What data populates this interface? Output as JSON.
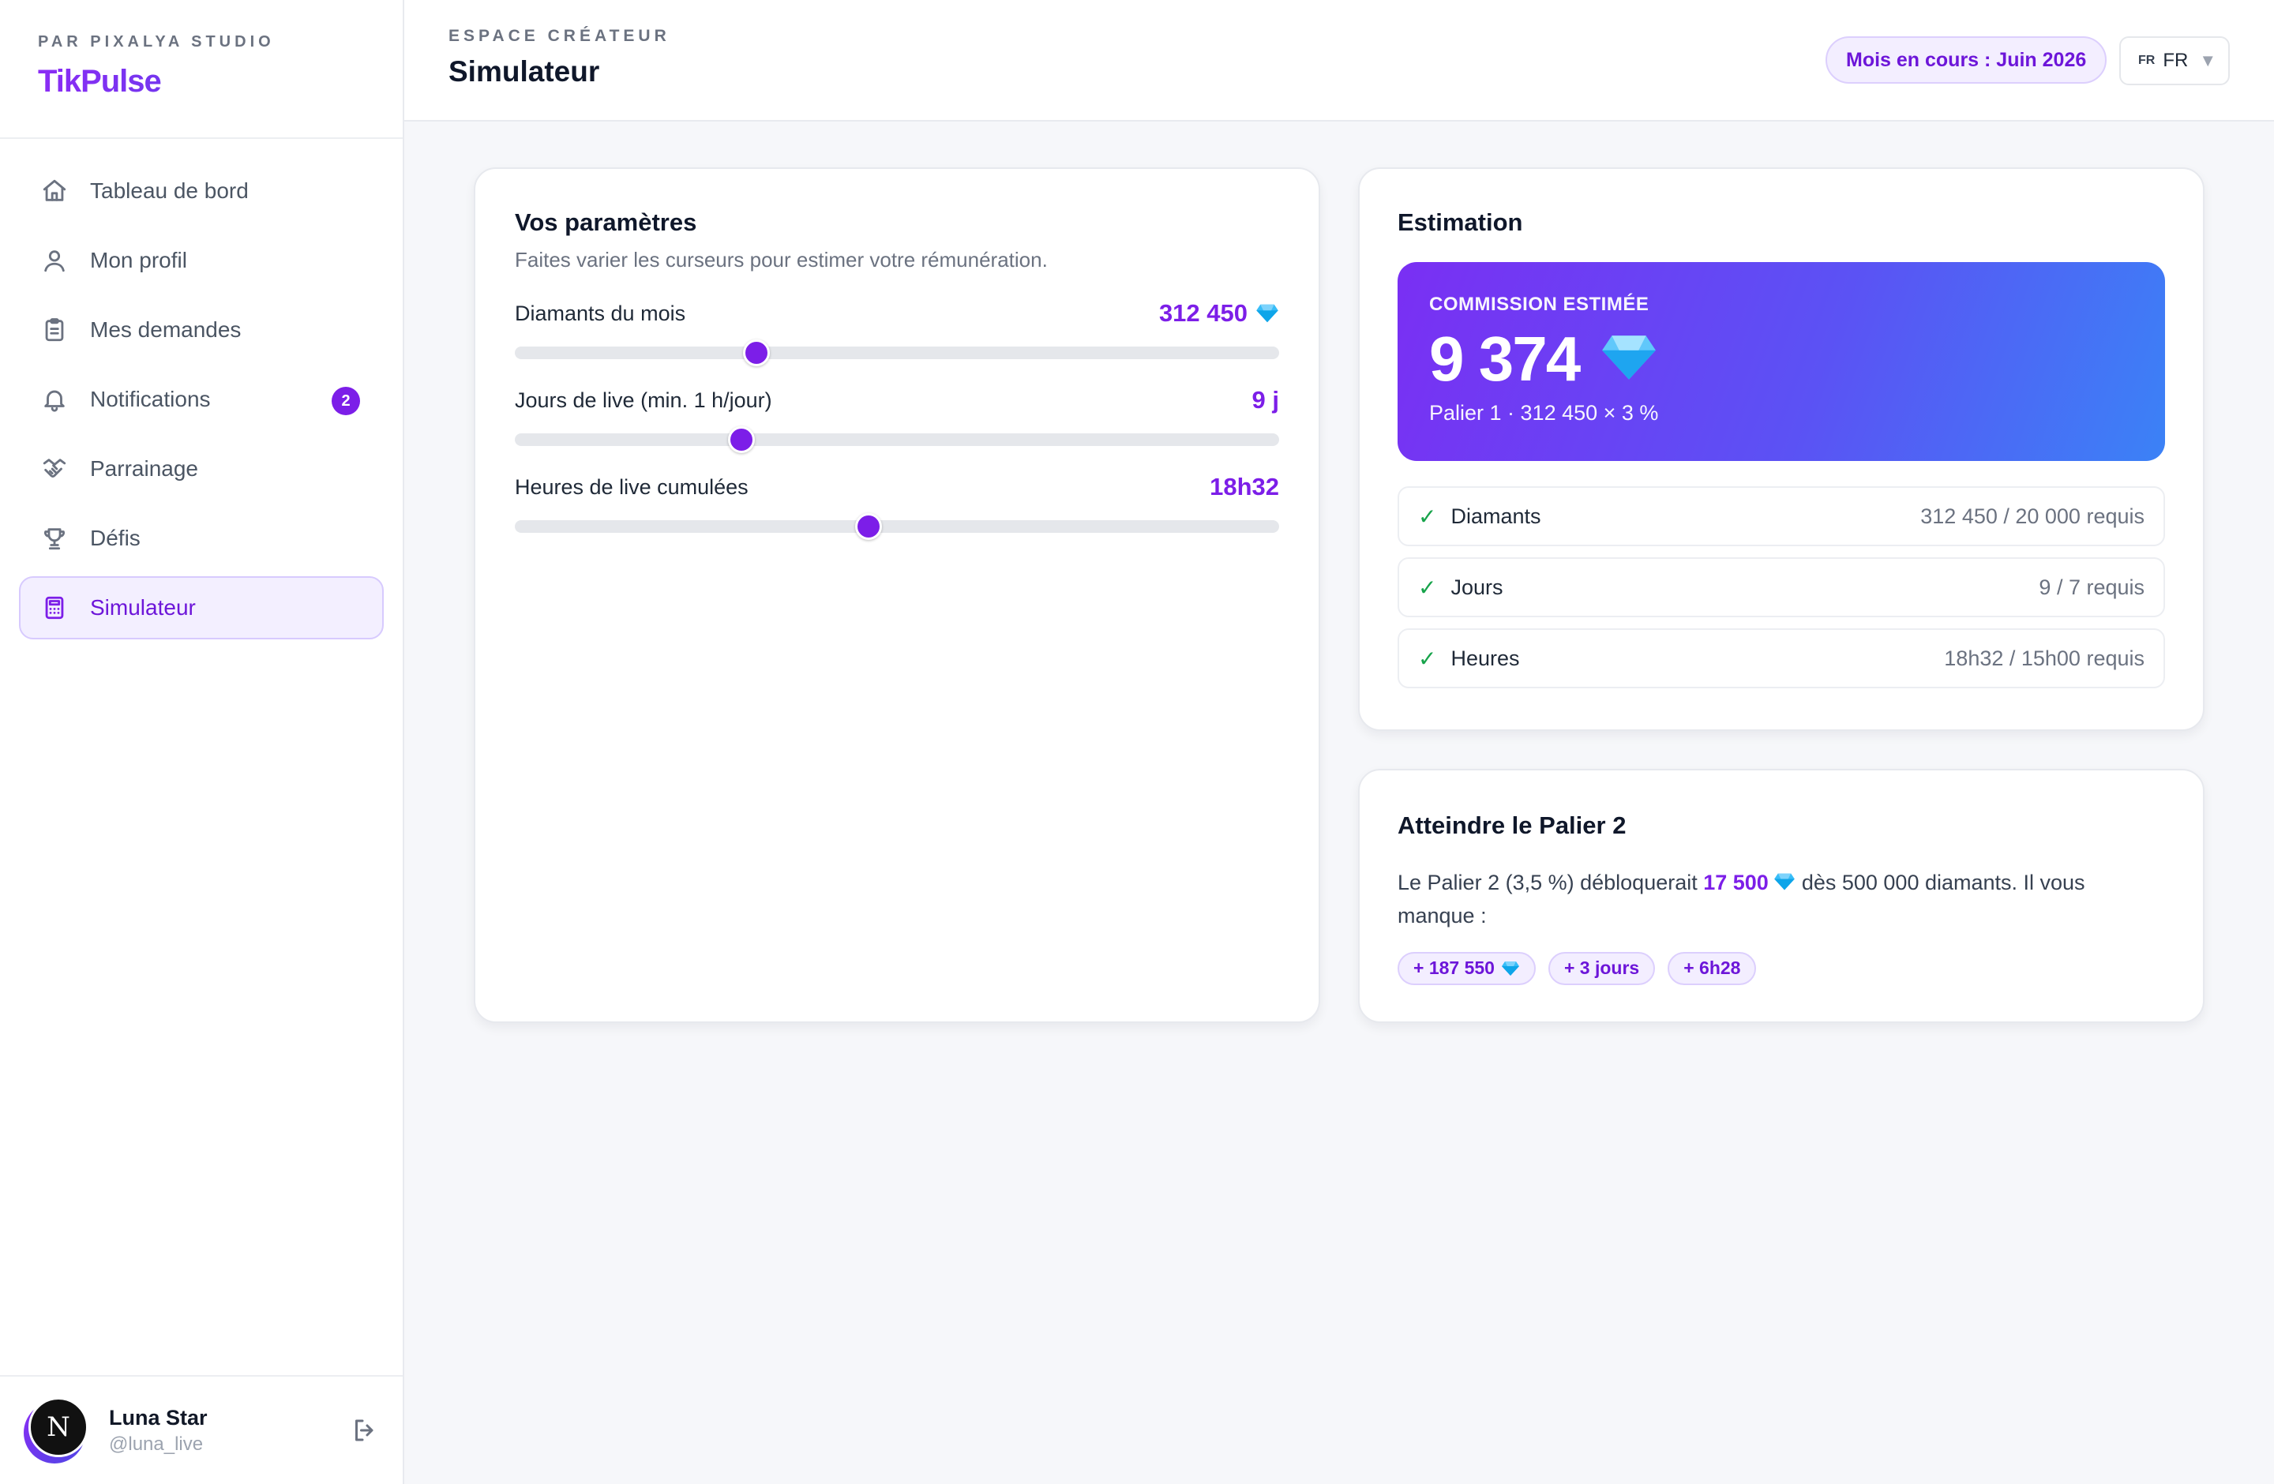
{
  "brand": {
    "kicker": "PAR PIXALYA STUDIO",
    "name": "TikPulse"
  },
  "sidebar": {
    "items": [
      {
        "label": "Tableau de bord",
        "icon": "home-icon"
      },
      {
        "label": "Mon profil",
        "icon": "user-icon"
      },
      {
        "label": "Mes demandes",
        "icon": "clipboard-icon"
      },
      {
        "label": "Notifications",
        "icon": "bell-icon",
        "badge": "2"
      },
      {
        "label": "Parrainage",
        "icon": "handshake-icon"
      },
      {
        "label": "Défis",
        "icon": "trophy-icon"
      },
      {
        "label": "Simulateur",
        "icon": "calculator-icon",
        "active": true
      }
    ]
  },
  "user": {
    "initial": "N",
    "name": "Luna Star",
    "handle": "@luna_live"
  },
  "header": {
    "kicker": "ESPACE CRÉATEUR",
    "title": "Simulateur",
    "month": "Mois en cours : Juin 2026",
    "lang_flag": "FR",
    "lang_value": "FR"
  },
  "params": {
    "title": "Vos paramètres",
    "subtitle": "Faites varier les curseurs pour estimer votre rémunération.",
    "sliders": [
      {
        "label": "Diamants du mois",
        "value": "312 450",
        "fraction": 0.316
      },
      {
        "label": "Jours de live (min. 1 h/jour)",
        "value": "9 j",
        "fraction": 0.296
      },
      {
        "label": "Heures de live cumulées",
        "value": "18h32",
        "fraction": 0.463
      }
    ]
  },
  "estimation": {
    "title": "Estimation",
    "hero_label": "COMMISSION ESTIMÉE",
    "hero_amount": "9 374",
    "hero_detail": "Palier 1 · 312 450 × 3 %",
    "requirements": [
      {
        "check": "✓",
        "label": "Diamants",
        "value": "312 450 / 20 000 requis"
      },
      {
        "check": "✓",
        "label": "Jours",
        "value": "9 / 7 requis"
      },
      {
        "check": "✓",
        "label": "Heures",
        "value": "18h32 / 15h00 requis"
      }
    ]
  },
  "palier": {
    "title": "Atteindre le Palier 2",
    "text_before": "Le Palier 2 (3,5 %) débloquerait ",
    "highlight": "17 500",
    "text_after": "dès 500 000 diamants. Il vous manque :",
    "chips": [
      "+ 187 550",
      "+ 3 jours",
      "+ 6h28"
    ]
  },
  "colors": {
    "accent": "#7c1ee8",
    "gradient_start": "#7a2ff3",
    "gradient_end": "#3b82f6",
    "check": "#16a34a"
  }
}
